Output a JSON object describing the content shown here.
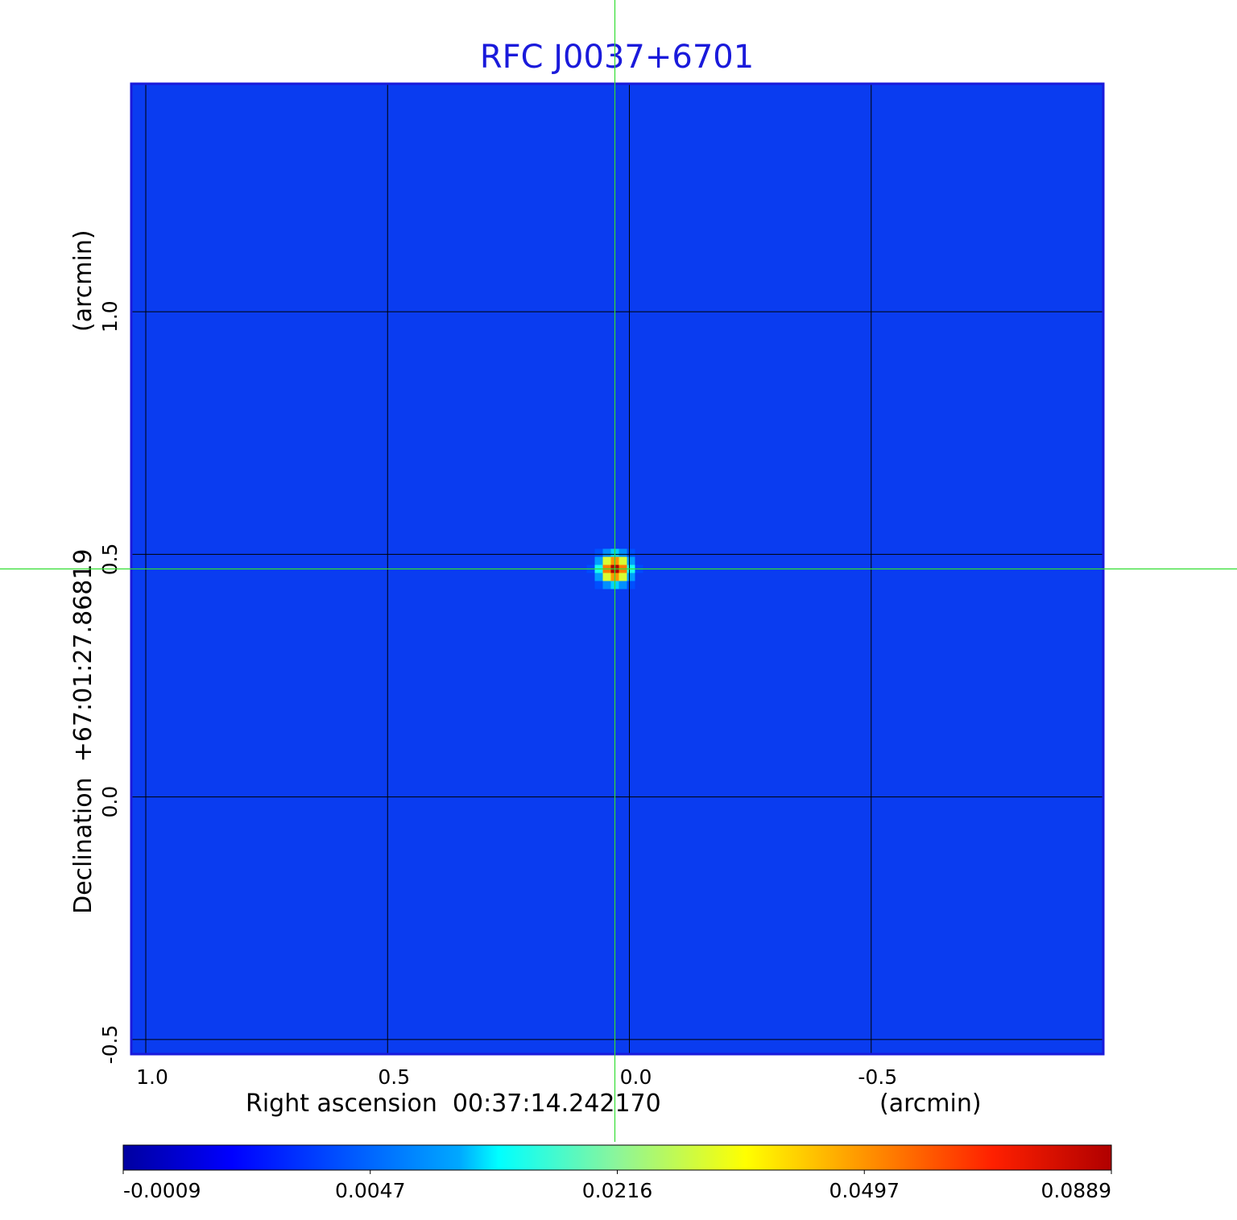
{
  "chart_data": {
    "type": "heatmap",
    "title": "RFC J0037+6701",
    "xlabel": "Right ascension  00:37:14.242170",
    "xunit": "(arcmin)",
    "ylabel": "Declination  +67:01:27.86819",
    "yunit": "(arcmin)",
    "x_ticks": [
      {
        "value": 1.0,
        "label": "1.0"
      },
      {
        "value": 0.5,
        "label": "0.5"
      },
      {
        "value": 0.0,
        "label": "0.0"
      },
      {
        "value": -0.5,
        "label": "-0.5"
      }
    ],
    "y_ticks": [
      {
        "value": 1.0,
        "label": "1.0"
      },
      {
        "value": 0.5,
        "label": "0.5"
      },
      {
        "value": 0.0,
        "label": "0.0"
      },
      {
        "value": -0.5,
        "label": "-0.5"
      }
    ],
    "xlim": [
      1.03,
      -0.98
    ],
    "ylim": [
      -0.53,
      1.47
    ],
    "grid": true,
    "colormap": "jet",
    "colorbar": {
      "ticks": [
        {
          "value": -0.0009,
          "label": "-0.0009"
        },
        {
          "value": 0.0047,
          "label": "0.0047"
        },
        {
          "value": 0.0216,
          "label": "0.0216"
        },
        {
          "value": 0.0497,
          "label": "0.0497"
        },
        {
          "value": 0.0889,
          "label": "0.0889"
        }
      ]
    },
    "peak": {
      "ra_offset": 0.03,
      "dec_offset": 0.47,
      "value": 0.0889
    },
    "background_level": 0.0015,
    "crosshair": {
      "x": 0.03,
      "y": 0.47,
      "color": "#33dd33"
    },
    "colors": {
      "frame": "#1a1adb",
      "grid": "#000000",
      "background": "#0a3cf0"
    }
  }
}
